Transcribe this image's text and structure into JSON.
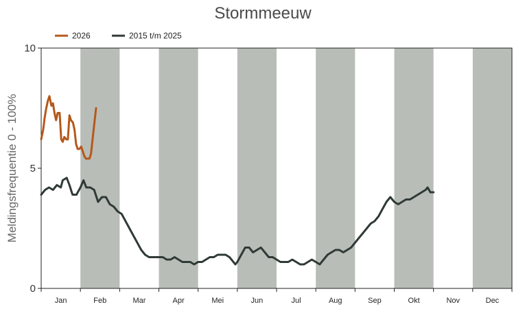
{
  "chart_data": {
    "type": "line",
    "title": "Stormmeeuw",
    "xlabel": "",
    "ylabel": "Meldingsfrequentie 0 - 100%",
    "ylim": [
      0,
      10
    ],
    "y_ticks": [
      "0",
      "5",
      "10"
    ],
    "months": [
      "Jan",
      "Feb",
      "Mar",
      "Apr",
      "Mei",
      "Jun",
      "Jul",
      "Aug",
      "Sep",
      "Okt",
      "Nov",
      "Dec"
    ],
    "shaded_months": [
      1,
      3,
      5,
      7,
      9,
      11
    ],
    "shade_color": "#b9bdb8",
    "legend_position": "top-left",
    "series": [
      {
        "name": "2026",
        "color": "#b5581a",
        "points": [
          [
            0.0,
            6.2
          ],
          [
            0.05,
            6.6
          ],
          [
            0.09,
            7.1
          ],
          [
            0.13,
            7.5
          ],
          [
            0.17,
            7.8
          ],
          [
            0.21,
            8.0
          ],
          [
            0.26,
            7.6
          ],
          [
            0.3,
            7.7
          ],
          [
            0.34,
            7.3
          ],
          [
            0.38,
            7.0
          ],
          [
            0.42,
            7.3
          ],
          [
            0.47,
            7.3
          ],
          [
            0.51,
            6.2
          ],
          [
            0.55,
            6.1
          ],
          [
            0.59,
            6.3
          ],
          [
            0.64,
            6.2
          ],
          [
            0.68,
            6.2
          ],
          [
            0.72,
            7.2
          ],
          [
            0.76,
            7.0
          ],
          [
            0.81,
            6.9
          ],
          [
            0.85,
            6.6
          ],
          [
            0.89,
            6.0
          ],
          [
            0.93,
            5.8
          ],
          [
            0.97,
            5.8
          ],
          [
            1.02,
            5.9
          ],
          [
            1.06,
            5.7
          ],
          [
            1.1,
            5.5
          ],
          [
            1.14,
            5.4
          ],
          [
            1.18,
            5.4
          ],
          [
            1.23,
            5.4
          ],
          [
            1.27,
            5.6
          ],
          [
            1.31,
            6.2
          ],
          [
            1.35,
            6.8
          ],
          [
            1.4,
            7.5
          ]
        ]
      },
      {
        "name": "2015 t/m 2025",
        "color": "#2f3a36",
        "points": [
          [
            0.0,
            3.9
          ],
          [
            0.1,
            4.1
          ],
          [
            0.2,
            4.2
          ],
          [
            0.3,
            4.1
          ],
          [
            0.4,
            4.3
          ],
          [
            0.5,
            4.2
          ],
          [
            0.55,
            4.5
          ],
          [
            0.65,
            4.6
          ],
          [
            0.72,
            4.3
          ],
          [
            0.8,
            3.9
          ],
          [
            0.9,
            3.9
          ],
          [
            1.0,
            4.2
          ],
          [
            1.08,
            4.5
          ],
          [
            1.15,
            4.2
          ],
          [
            1.25,
            4.2
          ],
          [
            1.35,
            4.1
          ],
          [
            1.45,
            3.6
          ],
          [
            1.55,
            3.8
          ],
          [
            1.65,
            3.8
          ],
          [
            1.75,
            3.5
          ],
          [
            1.85,
            3.4
          ],
          [
            1.95,
            3.2
          ],
          [
            2.05,
            3.1
          ],
          [
            2.15,
            2.8
          ],
          [
            2.25,
            2.5
          ],
          [
            2.35,
            2.2
          ],
          [
            2.45,
            1.9
          ],
          [
            2.55,
            1.6
          ],
          [
            2.65,
            1.4
          ],
          [
            2.75,
            1.3
          ],
          [
            2.85,
            1.3
          ],
          [
            3.0,
            1.3
          ],
          [
            3.1,
            1.3
          ],
          [
            3.2,
            1.2
          ],
          [
            3.3,
            1.2
          ],
          [
            3.4,
            1.3
          ],
          [
            3.5,
            1.2
          ],
          [
            3.6,
            1.1
          ],
          [
            3.7,
            1.1
          ],
          [
            3.8,
            1.1
          ],
          [
            3.9,
            1.0
          ],
          [
            4.0,
            1.1
          ],
          [
            4.1,
            1.1
          ],
          [
            4.2,
            1.2
          ],
          [
            4.3,
            1.3
          ],
          [
            4.4,
            1.3
          ],
          [
            4.5,
            1.4
          ],
          [
            4.6,
            1.4
          ],
          [
            4.7,
            1.4
          ],
          [
            4.8,
            1.3
          ],
          [
            4.9,
            1.1
          ],
          [
            4.95,
            1.0
          ],
          [
            5.0,
            1.1
          ],
          [
            5.1,
            1.4
          ],
          [
            5.2,
            1.7
          ],
          [
            5.3,
            1.7
          ],
          [
            5.4,
            1.5
          ],
          [
            5.5,
            1.6
          ],
          [
            5.6,
            1.7
          ],
          [
            5.7,
            1.5
          ],
          [
            5.8,
            1.3
          ],
          [
            5.9,
            1.3
          ],
          [
            6.0,
            1.2
          ],
          [
            6.1,
            1.1
          ],
          [
            6.2,
            1.1
          ],
          [
            6.3,
            1.1
          ],
          [
            6.4,
            1.2
          ],
          [
            6.5,
            1.1
          ],
          [
            6.6,
            1.0
          ],
          [
            6.7,
            1.0
          ],
          [
            6.8,
            1.1
          ],
          [
            6.9,
            1.2
          ],
          [
            7.0,
            1.1
          ],
          [
            7.1,
            1.0
          ],
          [
            7.2,
            1.2
          ],
          [
            7.3,
            1.4
          ],
          [
            7.4,
            1.5
          ],
          [
            7.5,
            1.6
          ],
          [
            7.6,
            1.6
          ],
          [
            7.7,
            1.5
          ],
          [
            7.8,
            1.6
          ],
          [
            7.9,
            1.7
          ],
          [
            8.0,
            1.9
          ],
          [
            8.1,
            2.1
          ],
          [
            8.2,
            2.3
          ],
          [
            8.3,
            2.5
          ],
          [
            8.4,
            2.7
          ],
          [
            8.5,
            2.8
          ],
          [
            8.6,
            3.0
          ],
          [
            8.7,
            3.3
          ],
          [
            8.8,
            3.6
          ],
          [
            8.9,
            3.8
          ],
          [
            9.0,
            3.6
          ],
          [
            9.1,
            3.5
          ],
          [
            9.2,
            3.6
          ],
          [
            9.3,
            3.7
          ],
          [
            9.4,
            3.7
          ],
          [
            9.5,
            3.8
          ],
          [
            9.6,
            3.9
          ],
          [
            9.7,
            4.0
          ],
          [
            9.8,
            4.1
          ],
          [
            9.85,
            4.2
          ],
          [
            9.92,
            4.0
          ],
          [
            10.0,
            4.0
          ]
        ]
      }
    ]
  }
}
